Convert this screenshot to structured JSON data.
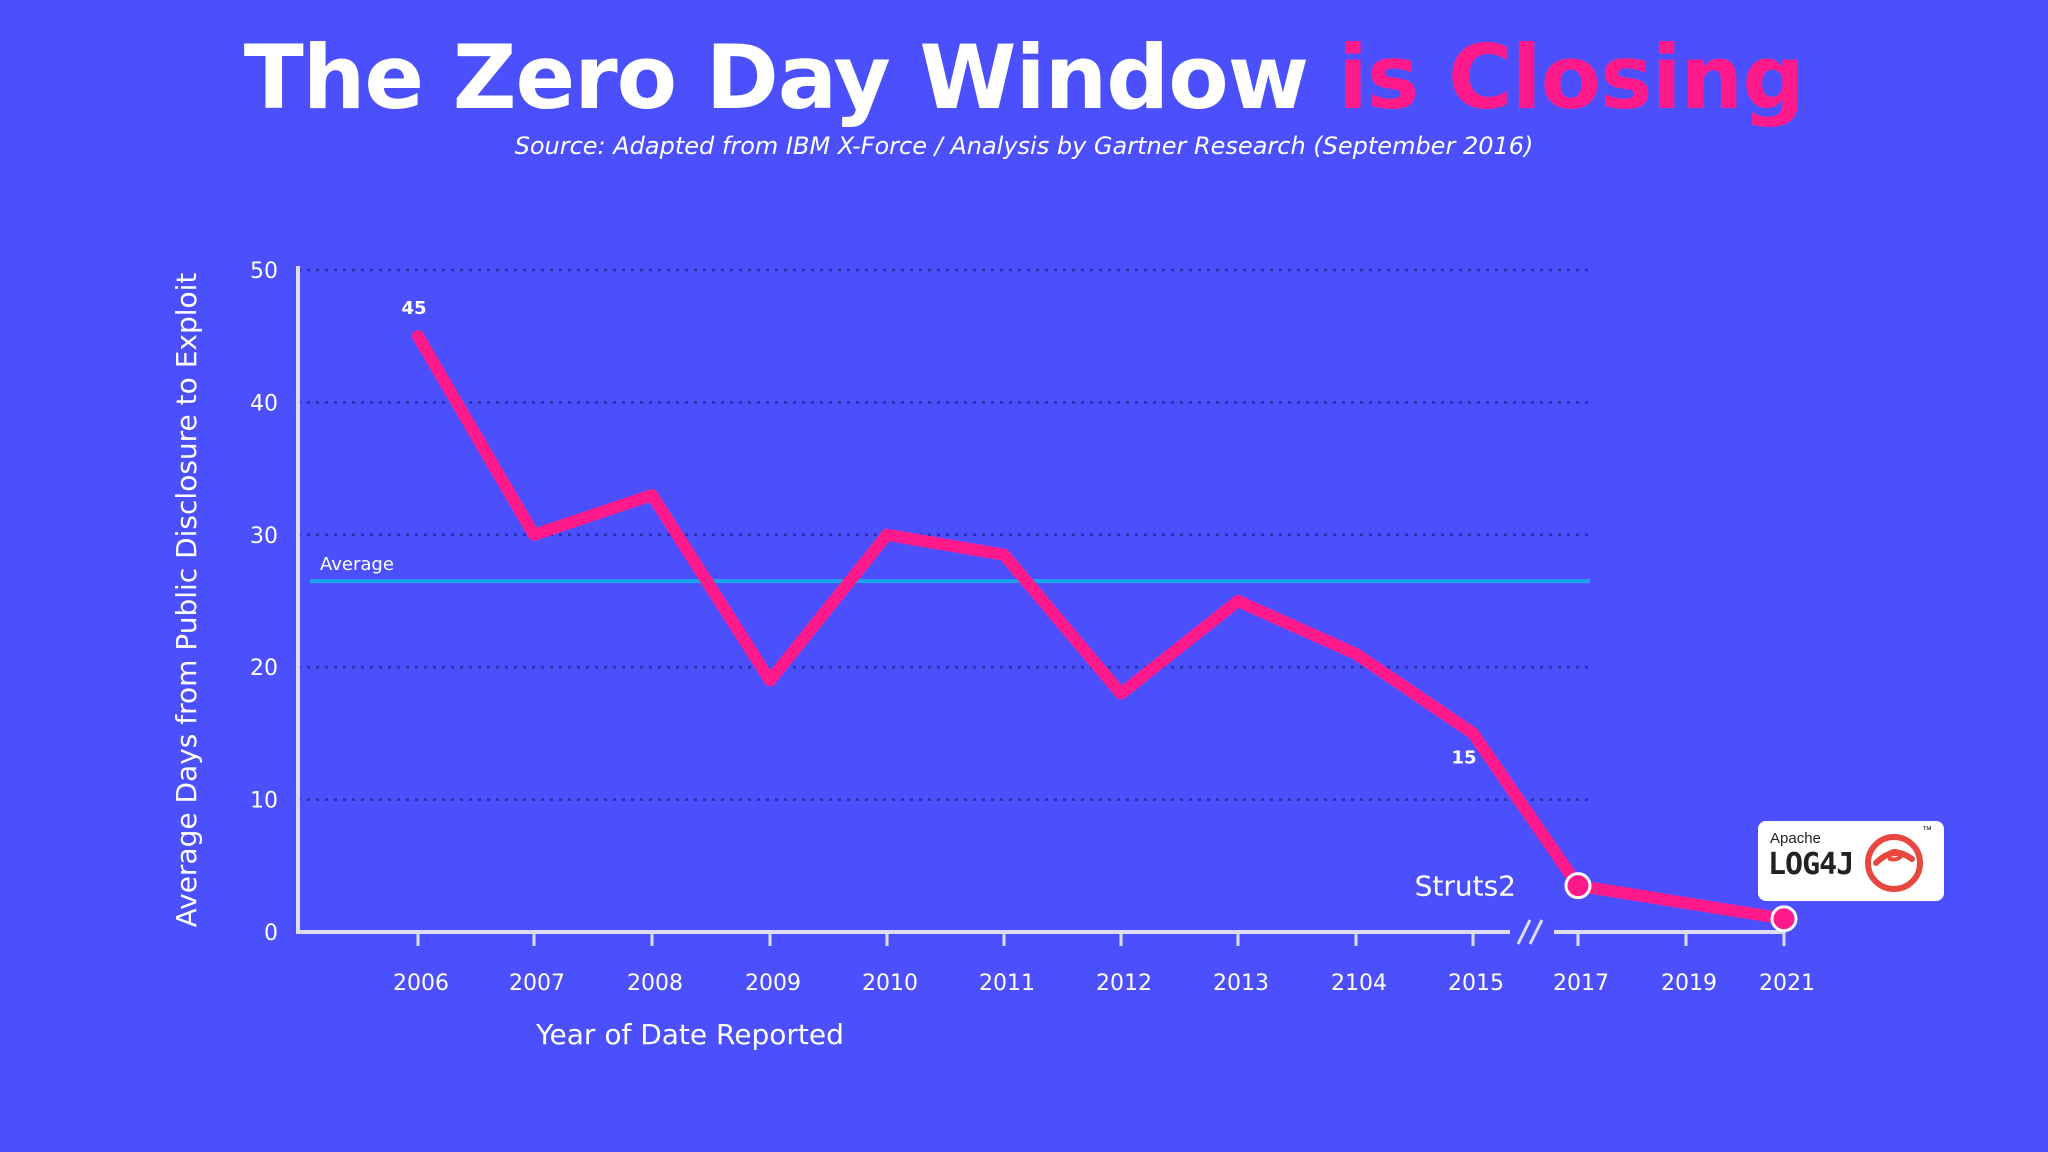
{
  "title": {
    "main": "The Zero Day Window",
    "accent": "is Closing",
    "accent_color": "#ff1a8c"
  },
  "subtitle": "Source: Adapted from IBM X-Force / Analysis by Gartner Research (September 2016)",
  "colors": {
    "background": "#4b50fc",
    "line": "#ff1a8c",
    "average": "#1aa3ee",
    "axis": "#dcdcf0",
    "grid": "#2d2fa8"
  },
  "chart_data": {
    "type": "line",
    "ylabel": "Average Days from Public Disclosure to Exploit",
    "xlabel": "Year of Date Reported",
    "ylim": [
      0,
      50
    ],
    "yticks": [
      0,
      10,
      20,
      30,
      40,
      50
    ],
    "grid": "horizontal dotted",
    "x": [
      "2006",
      "2007",
      "2008",
      "2009",
      "2010",
      "2011",
      "2012",
      "2013",
      "2104",
      "2015",
      "2017",
      "2019",
      "2021"
    ],
    "series": [
      {
        "values": [
          45,
          30,
          33,
          19,
          30,
          28.5,
          18,
          25,
          21,
          15,
          3.5,
          null,
          1
        ]
      }
    ],
    "average": {
      "label": "Average",
      "value": 26.5
    },
    "data_labels": [
      {
        "x": "2006",
        "text": "45"
      },
      {
        "x": "2015",
        "text": "15"
      }
    ],
    "markers": [
      "2017",
      "2021"
    ],
    "annotations": [
      {
        "x": "2017",
        "text": "Struts2"
      }
    ],
    "axis_break_between": [
      "2015",
      "2017"
    ]
  },
  "logo": {
    "icon": "apache-log4j-logo",
    "small_text": "Apache",
    "word": "LOG4J",
    "tm": "™"
  }
}
